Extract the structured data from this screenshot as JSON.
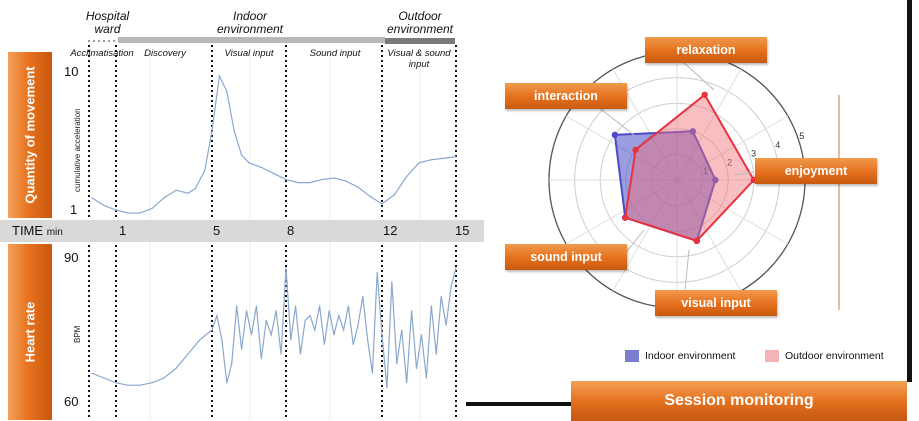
{
  "environments": {
    "hospital": "Hospital\nward",
    "indoor": "Indoor\nenvironment",
    "outdoor": "Outdoor\nenvironment"
  },
  "phases": [
    "Acclimatisation",
    "Discovery",
    "Visual input",
    "Sound input",
    "Visual & sound\ninput"
  ],
  "side_labels": {
    "movement": "Quantity of movement",
    "heart": "Heart rate"
  },
  "time_axis": {
    "label": "TIME",
    "unit": "min",
    "ticks": [
      "1",
      "5",
      "8",
      "12",
      "15"
    ]
  },
  "colors": {
    "accent_orange": "#e5721f",
    "indoor": "#4b4bc8",
    "outdoor": "#e8323c",
    "signal": "#8aa8cf"
  },
  "chart_data": [
    {
      "type": "line",
      "ylabel": "cumulative acceleration",
      "ylim": [
        1,
        10
      ],
      "yticks": [
        "10",
        "1"
      ],
      "x": [
        0,
        0.5,
        1,
        1.5,
        2,
        2.5,
        3,
        3.5,
        4,
        4.3,
        4.7,
        5,
        5.3,
        5.6,
        5.9,
        6.2,
        6.5,
        7,
        7.5,
        8,
        8.5,
        9,
        9.5,
        10,
        10.5,
        11,
        11.5,
        12,
        12.5,
        13,
        13.5,
        14,
        14.5,
        15
      ],
      "values": [
        1.8,
        1.3,
        1.0,
        0.8,
        0.8,
        1.1,
        1.8,
        2.3,
        2.1,
        2.4,
        3.6,
        6.2,
        9.8,
        8.8,
        6.2,
        4.6,
        4.1,
        3.8,
        3.4,
        3.0,
        2.8,
        2.8,
        3.0,
        3.1,
        2.9,
        2.5,
        1.9,
        1.4,
        2.0,
        3.2,
        4.1,
        4.3,
        4.4,
        4.5
      ]
    },
    {
      "type": "line",
      "ylabel": "BPM",
      "ylim": [
        60,
        90
      ],
      "yticks": [
        "90",
        "60"
      ],
      "x": [
        0,
        0.5,
        1,
        1.5,
        2,
        2.5,
        3,
        3.5,
        4,
        4.5,
        5,
        5.2,
        5.4,
        5.6,
        5.8,
        6.0,
        6.2,
        6.4,
        6.6,
        6.8,
        7.0,
        7.2,
        7.4,
        7.6,
        7.8,
        8.0,
        8.2,
        8.4,
        8.6,
        8.8,
        9.0,
        9.2,
        9.4,
        9.6,
        9.8,
        10.0,
        10.2,
        10.4,
        10.6,
        10.8,
        11.0,
        11.2,
        11.4,
        11.6,
        11.8,
        12.0,
        12.2,
        12.4,
        12.6,
        12.8,
        13.0,
        13.2,
        13.4,
        13.6,
        13.8,
        14.0,
        14.2,
        14.4,
        14.6,
        14.8,
        15.0
      ],
      "values": [
        66,
        65,
        64,
        63.5,
        63.5,
        64,
        65,
        67,
        70,
        73,
        75,
        78,
        73,
        64,
        68,
        80,
        71,
        79,
        74,
        80,
        69,
        77,
        74,
        79,
        70,
        88,
        73,
        80,
        70,
        77,
        78,
        75,
        80,
        72,
        79,
        74,
        78,
        75,
        80,
        72,
        76,
        82,
        73,
        66,
        87,
        74,
        63,
        85,
        68,
        75,
        64,
        79,
        67,
        74,
        65,
        80,
        70,
        82,
        76,
        84,
        88
      ]
    },
    {
      "type": "radar",
      "axes": [
        "relaxation",
        "enjoyment",
        "visual input",
        "sound input",
        "interaction"
      ],
      "rticks": [
        "1",
        "2",
        "3",
        "4",
        "5"
      ],
      "rlim": [
        0,
        5
      ],
      "series": [
        {
          "name": "Indoor environment",
          "values": [
            2.0,
            1.5,
            2.5,
            2.5,
            3.0
          ]
        },
        {
          "name": "Outdoor environment",
          "values": [
            3.5,
            3.0,
            2.5,
            2.5,
            2.0
          ]
        }
      ],
      "legend": "bottom"
    }
  ],
  "session_title": "Session monitoring"
}
